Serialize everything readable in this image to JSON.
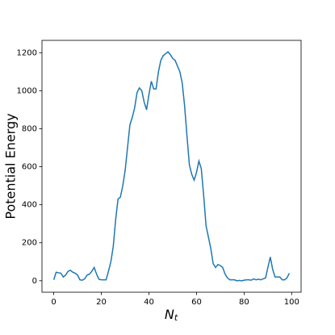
{
  "chart_data": {
    "type": "line",
    "xlabel": "N",
    "xlabel_sub": "t",
    "ylabel": "Potential Energy",
    "x": [
      0,
      1,
      2,
      3,
      4,
      5,
      6,
      7,
      8,
      9,
      10,
      11,
      12,
      13,
      14,
      15,
      16,
      17,
      18,
      19,
      20,
      21,
      22,
      23,
      24,
      25,
      26,
      27,
      28,
      29,
      30,
      31,
      32,
      33,
      34,
      35,
      36,
      37,
      38,
      39,
      40,
      41,
      42,
      43,
      44,
      45,
      46,
      47,
      48,
      49,
      50,
      51,
      52,
      53,
      54,
      55,
      56,
      57,
      58,
      59,
      60,
      61,
      62,
      63,
      64,
      65,
      66,
      67,
      68,
      69,
      70,
      71,
      72,
      73,
      74,
      75,
      76,
      77,
      78,
      79,
      80,
      81,
      82,
      83,
      84,
      85,
      86,
      87,
      88,
      89,
      90,
      91,
      92,
      93,
      94,
      95,
      96,
      97,
      98,
      99
    ],
    "series": [
      {
        "name": "Potential Energy",
        "color": "#1f77b4",
        "values": [
          5,
          45,
          42,
          40,
          20,
          30,
          50,
          55,
          45,
          40,
          30,
          5,
          3,
          10,
          30,
          35,
          50,
          70,
          35,
          8,
          5,
          5,
          5,
          50,
          100,
          180,
          320,
          430,
          440,
          500,
          580,
          700,
          820,
          860,
          910,
          990,
          1015,
          1000,
          940,
          900,
          980,
          1050,
          1010,
          1010,
          1100,
          1160,
          1185,
          1195,
          1205,
          1190,
          1170,
          1160,
          1130,
          1100,
          1040,
          920,
          760,
          610,
          560,
          530,
          570,
          630,
          590,
          450,
          290,
          230,
          170,
          90,
          70,
          85,
          80,
          70,
          35,
          15,
          5,
          5,
          5,
          0,
          2,
          0,
          3,
          5,
          5,
          3,
          10,
          5,
          8,
          5,
          10,
          15,
          70,
          125,
          60,
          20,
          20,
          20,
          5,
          5,
          15,
          40
        ]
      }
    ],
    "xlim": [
      -4.95,
      103.95
    ],
    "xticks": [
      0,
      20,
      40,
      60,
      80,
      100
    ],
    "ylim": [
      -60.25,
      1265.25
    ],
    "yticks": [
      0,
      200,
      400,
      600,
      800,
      1000,
      1200
    ],
    "grid": false
  }
}
